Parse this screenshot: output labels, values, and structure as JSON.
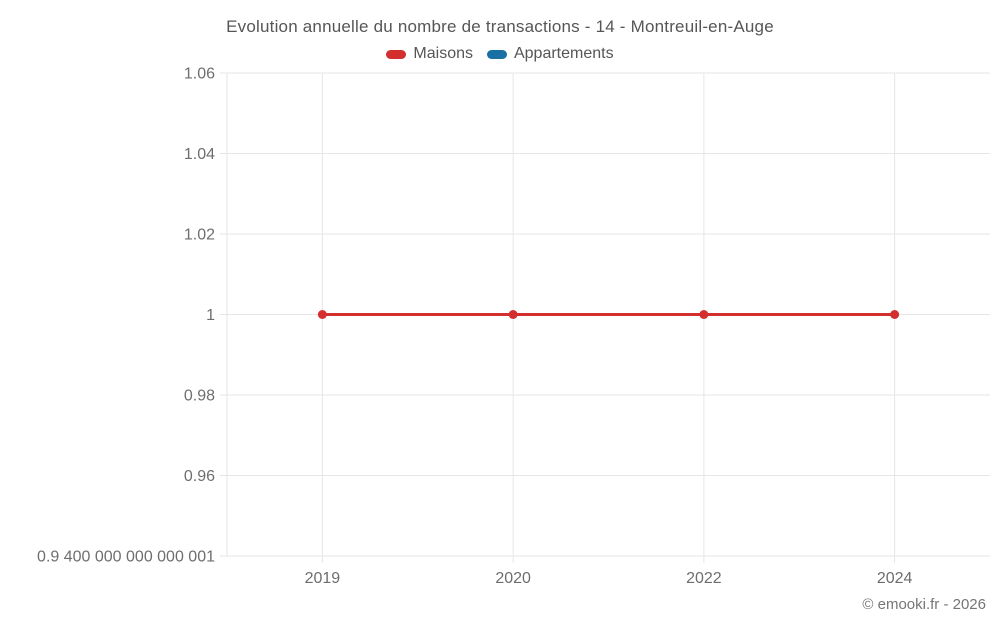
{
  "header": {
    "title": "Evolution annuelle du nombre de transactions - 14 - Montreuil-en-Auge"
  },
  "legend": {
    "items": [
      {
        "label": "Maisons",
        "color": "#d32f2f"
      },
      {
        "label": "Appartements",
        "color": "#1a6fa5"
      }
    ]
  },
  "footer": {
    "credit": "© emooki.fr - 2026"
  },
  "chart_data": {
    "type": "line",
    "title": "Evolution annuelle du nombre de transactions - 14 - Montreuil-en-Auge",
    "categories": [
      "2019",
      "2020",
      "2022",
      "2024"
    ],
    "series": [
      {
        "name": "Maisons",
        "color": "#d32f2f",
        "values": [
          1,
          1,
          1,
          1
        ]
      },
      {
        "name": "Appartements",
        "color": "#1a6fa5",
        "values": []
      }
    ],
    "xlabel": "",
    "ylabel": "",
    "ylim": [
      0.9400000000000001,
      1.06
    ],
    "grid": true,
    "legend_position": "top",
    "y_ticks": [
      {
        "value": 1.06,
        "label": "1.06"
      },
      {
        "value": 1.04,
        "label": "1.04"
      },
      {
        "value": 1.02,
        "label": "1.02"
      },
      {
        "value": 1,
        "label": "1"
      },
      {
        "value": 0.98,
        "label": "0.98"
      },
      {
        "value": 0.96,
        "label": "0.96"
      },
      {
        "value": 0.9400000000000001,
        "label": "0.9 400 000 000 000 001"
      }
    ]
  }
}
